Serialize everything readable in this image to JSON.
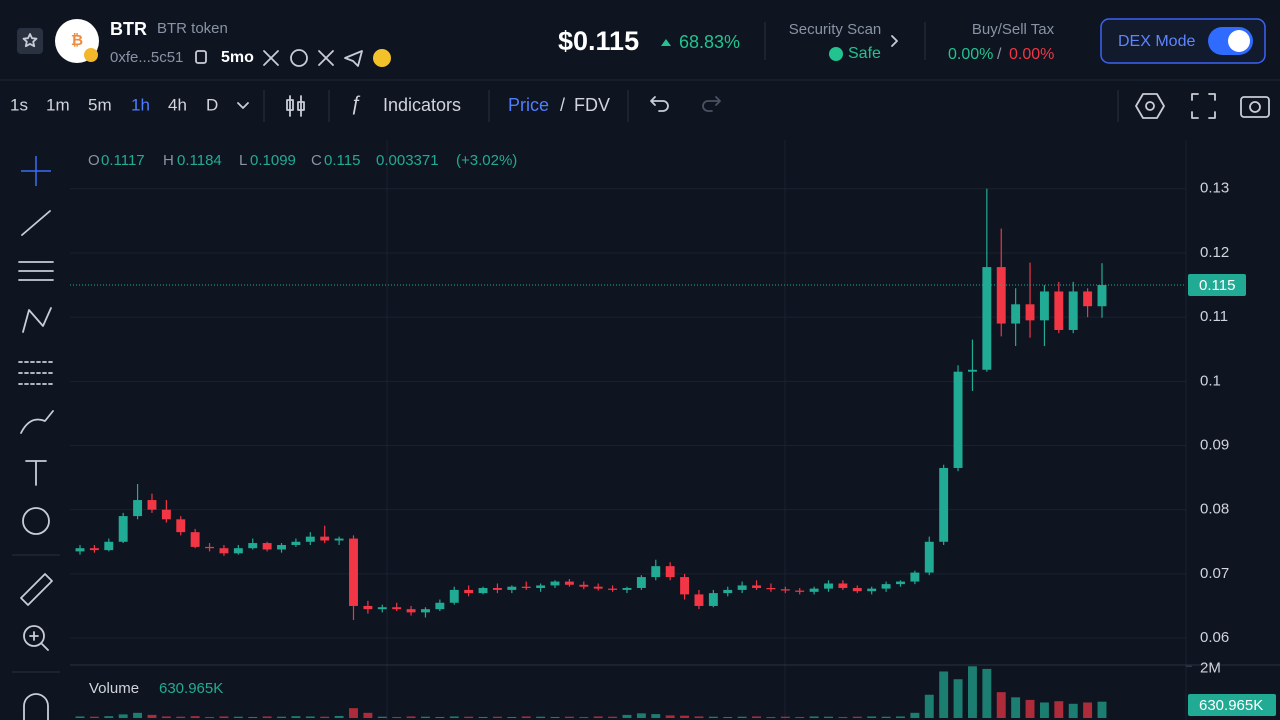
{
  "header": {
    "symbol": "BTR",
    "name": "BTR token",
    "address": "0xfe...5c51",
    "age": "5mo",
    "price": "$0.115",
    "change": "68.83%",
    "security_label": "Security Scan",
    "security_status": "Safe",
    "tax_label": "Buy/Sell Tax",
    "buy_tax": "0.00%",
    "tax_separator": "/",
    "sell_tax": "0.00%",
    "dex_mode": "DEX Mode"
  },
  "toolbar": {
    "intervals": [
      "1s",
      "1m",
      "5m",
      "1h",
      "4h",
      "D"
    ],
    "indicators": "Indicators",
    "price": "Price",
    "separator": "/",
    "fdv": "FDV"
  },
  "chart_data": {
    "type": "candlestick",
    "legend": {
      "o": "O",
      "h": "H",
      "l": "L",
      "c": "C",
      "change": "0.003371",
      "change_pct": "(+3.02%)"
    },
    "ylim": [
      0.0558,
      0.1376
    ],
    "yticks": [
      0.06,
      0.07,
      0.08,
      0.09,
      0.1,
      0.11,
      0.12,
      0.13
    ],
    "grid": true,
    "up_color": "#22ab94",
    "down_color": "#f23645",
    "open": [
      0.0735,
      0.074,
      0.0737,
      0.075,
      0.079,
      0.0815,
      0.08,
      0.0785,
      0.0765,
      0.0742,
      0.074,
      0.0732,
      0.074,
      0.0748,
      0.0738,
      0.0745,
      0.075,
      0.0758,
      0.0752,
      0.0755,
      0.065,
      0.0645,
      0.0648,
      0.0645,
      0.064,
      0.0645,
      0.0655,
      0.0675,
      0.067,
      0.0678,
      0.0675,
      0.068,
      0.0678,
      0.0682,
      0.0688,
      0.0683,
      0.068,
      0.0677,
      0.0675,
      0.0678,
      0.0695,
      0.0712,
      0.0695,
      0.0668,
      0.065,
      0.067,
      0.0675,
      0.0682,
      0.0678,
      0.0676,
      0.0674,
      0.0672,
      0.0677,
      0.0685,
      0.0678,
      0.0673,
      0.0677,
      0.0684,
      0.0688,
      0.0702,
      0.075,
      0.0865,
      0.1015,
      0.1018,
      0.1178,
      0.109,
      0.112,
      0.1095,
      0.114,
      0.108,
      0.114,
      0.1117
    ],
    "high": [
      0.0745,
      0.0745,
      0.0755,
      0.0795,
      0.084,
      0.0825,
      0.0815,
      0.079,
      0.077,
      0.0748,
      0.0745,
      0.0745,
      0.0755,
      0.075,
      0.0748,
      0.0755,
      0.0765,
      0.0775,
      0.0758,
      0.076,
      0.0658,
      0.0652,
      0.0655,
      0.065,
      0.0648,
      0.066,
      0.068,
      0.0682,
      0.068,
      0.0685,
      0.0682,
      0.0688,
      0.0685,
      0.069,
      0.0692,
      0.0688,
      0.0685,
      0.0682,
      0.068,
      0.0698,
      0.0722,
      0.0718,
      0.07,
      0.0675,
      0.0675,
      0.068,
      0.0688,
      0.069,
      0.0685,
      0.068,
      0.0678,
      0.068,
      0.069,
      0.069,
      0.0682,
      0.068,
      0.0688,
      0.069,
      0.0705,
      0.0758,
      0.087,
      0.1025,
      0.1065,
      0.13,
      0.1238,
      0.1145,
      0.1185,
      0.115,
      0.1155,
      0.1155,
      0.1145,
      0.1184
    ],
    "low": [
      0.073,
      0.0733,
      0.0735,
      0.0748,
      0.0785,
      0.0795,
      0.078,
      0.076,
      0.074,
      0.0735,
      0.0728,
      0.073,
      0.0738,
      0.0735,
      0.0733,
      0.0742,
      0.0745,
      0.0748,
      0.0745,
      0.0628,
      0.0638,
      0.064,
      0.0642,
      0.0635,
      0.0632,
      0.0642,
      0.0652,
      0.0665,
      0.0668,
      0.067,
      0.067,
      0.0675,
      0.0672,
      0.0678,
      0.068,
      0.0676,
      0.0674,
      0.0672,
      0.067,
      0.0675,
      0.069,
      0.069,
      0.066,
      0.0645,
      0.0648,
      0.0665,
      0.067,
      0.0675,
      0.0672,
      0.067,
      0.0668,
      0.0668,
      0.0672,
      0.0675,
      0.067,
      0.0668,
      0.0672,
      0.068,
      0.0684,
      0.0698,
      0.0745,
      0.086,
      0.0985,
      0.1015,
      0.107,
      0.1055,
      0.1068,
      0.1055,
      0.1075,
      0.1075,
      0.11,
      0.1099
    ],
    "close": [
      0.074,
      0.0737,
      0.075,
      0.079,
      0.0815,
      0.08,
      0.0785,
      0.0765,
      0.0742,
      0.074,
      0.0732,
      0.074,
      0.0748,
      0.0738,
      0.0745,
      0.075,
      0.0758,
      0.0752,
      0.0755,
      0.065,
      0.0645,
      0.0648,
      0.0645,
      0.064,
      0.0645,
      0.0655,
      0.0675,
      0.067,
      0.0678,
      0.0675,
      0.068,
      0.0678,
      0.0682,
      0.0688,
      0.0683,
      0.068,
      0.0677,
      0.0675,
      0.0678,
      0.0695,
      0.0712,
      0.0695,
      0.0668,
      0.065,
      0.067,
      0.0675,
      0.0682,
      0.0678,
      0.0676,
      0.0674,
      0.0672,
      0.0677,
      0.0685,
      0.0678,
      0.0673,
      0.0677,
      0.0684,
      0.0688,
      0.0702,
      0.075,
      0.0865,
      0.1015,
      0.1018,
      0.1178,
      0.109,
      0.112,
      0.1095,
      0.114,
      0.108,
      0.114,
      0.1117,
      0.115
    ],
    "volume_title": "Volume",
    "volume_label": "630.965K",
    "volume_ylim": [
      0,
      2050000
    ],
    "volume_yticks": [
      {
        "value": 2000000,
        "label": "2M"
      }
    ],
    "volume": [
      60000,
      50000,
      70000,
      140000,
      200000,
      120000,
      60000,
      50000,
      70000,
      40000,
      60000,
      50000,
      40000,
      60000,
      50000,
      70000,
      60000,
      50000,
      80000,
      380000,
      200000,
      50000,
      40000,
      60000,
      50000,
      40000,
      60000,
      50000,
      40000,
      50000,
      40000,
      60000,
      50000,
      40000,
      50000,
      40000,
      60000,
      50000,
      120000,
      180000,
      150000,
      100000,
      90000,
      60000,
      50000,
      40000,
      50000,
      60000,
      40000,
      50000,
      40000,
      60000,
      50000,
      40000,
      50000,
      60000,
      50000,
      60000,
      200000,
      900000,
      1800000,
      1500000,
      2000000,
      1900000,
      1000000,
      800000,
      700000,
      600000,
      650000,
      550000,
      600000,
      630965
    ]
  }
}
